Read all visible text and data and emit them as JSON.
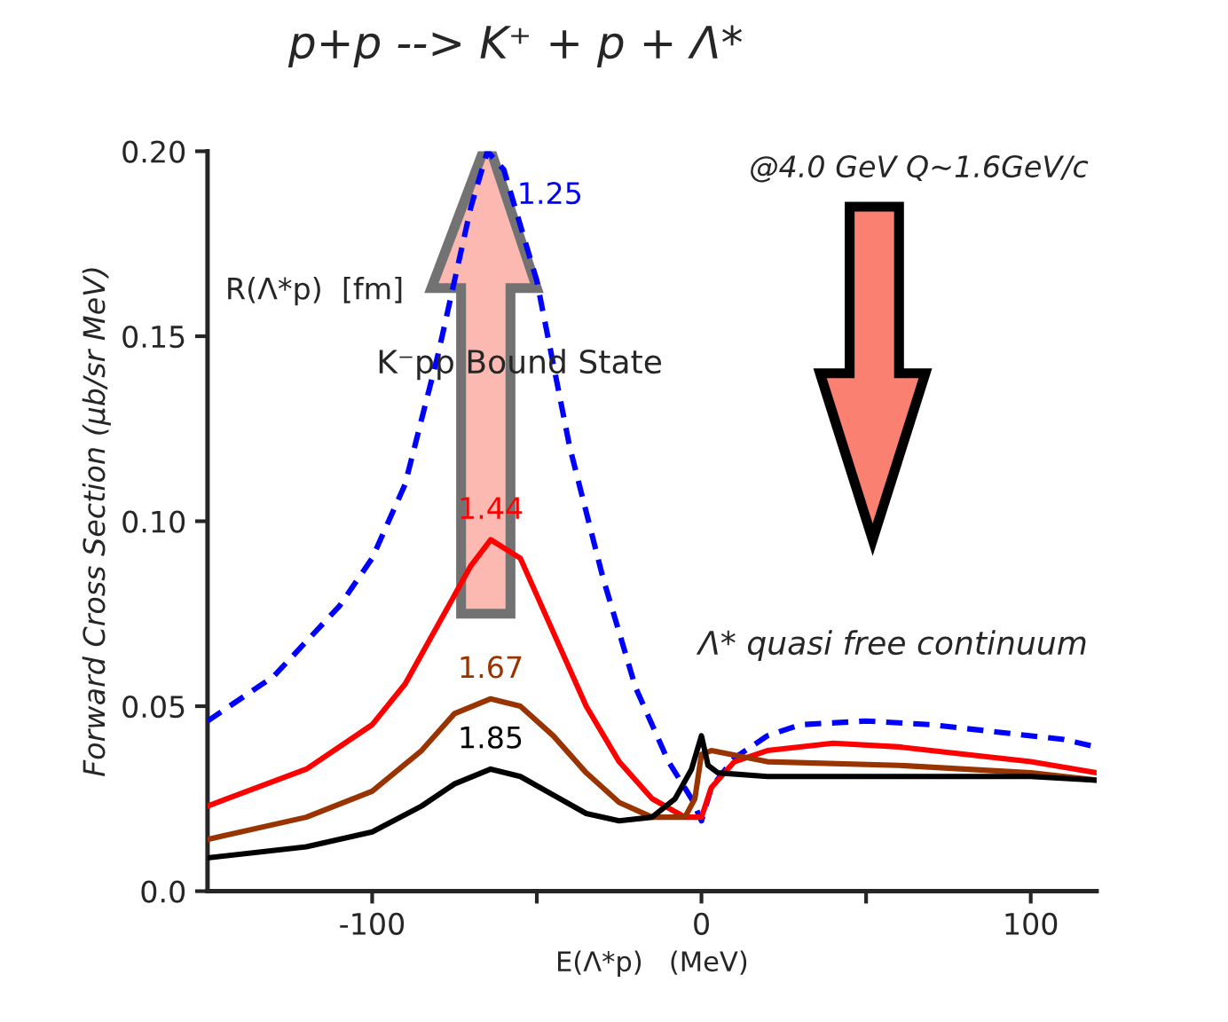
{
  "chart_data": {
    "type": "line",
    "title": "p+p --> K⁺ + p + Λ*",
    "xlabel": "E(Λ*p)   (MeV)",
    "ylabel": "Forward Cross Section (μb/sr MeV)",
    "annotations": [
      "@4.0 GeV Q~1.6GeV/c",
      "R(Λ*p)  [fm]",
      "K⁻pp Bound State",
      "Λ* quasi free continuum"
    ],
    "xlim": [
      -150,
      120
    ],
    "ylim": [
      0,
      0.2
    ],
    "xticks": [
      -100,
      {
        "value": -50,
        "label": null
      },
      0,
      {
        "value": 50,
        "label": null
      },
      100
    ],
    "yticks": [
      {
        "value": 0,
        "label": "0.0"
      },
      0.05,
      {
        "value": 0.1,
        "label": "0.10"
      },
      0.15,
      {
        "value": 0.2,
        "label": "0.20"
      }
    ],
    "grid": false,
    "legend": false,
    "series": [
      {
        "name": "1.25",
        "color": "#0000ff",
        "line_style": "dashed",
        "x": [
          -150,
          -130,
          -110,
          -100,
          -90,
          -80,
          -75,
          -70,
          -65,
          -60,
          -55,
          -50,
          -40,
          -30,
          -20,
          -10,
          -3,
          0,
          3,
          10,
          20,
          30,
          50,
          70,
          90,
          110,
          120
        ],
        "values": [
          0.046,
          0.058,
          0.077,
          0.09,
          0.11,
          0.145,
          0.165,
          0.185,
          0.2,
          0.195,
          0.18,
          0.165,
          0.12,
          0.085,
          0.055,
          0.035,
          0.025,
          0.019,
          0.028,
          0.036,
          0.042,
          0.045,
          0.046,
          0.045,
          0.043,
          0.041,
          0.039
        ]
      },
      {
        "name": "1.44",
        "color": "#ff0000",
        "line_style": "solid",
        "x": [
          -150,
          -120,
          -100,
          -90,
          -80,
          -70,
          -64,
          -55,
          -45,
          -35,
          -25,
          -15,
          -5,
          0,
          3,
          10,
          20,
          40,
          60,
          80,
          100,
          120
        ],
        "values": [
          0.023,
          0.033,
          0.045,
          0.056,
          0.072,
          0.088,
          0.095,
          0.09,
          0.07,
          0.05,
          0.035,
          0.025,
          0.02,
          0.02,
          0.028,
          0.035,
          0.038,
          0.04,
          0.039,
          0.037,
          0.035,
          0.032
        ]
      },
      {
        "name": "1.67",
        "color": "#993300",
        "line_style": "solid",
        "x": [
          -150,
          -120,
          -100,
          -85,
          -75,
          -64,
          -55,
          -45,
          -35,
          -25,
          -15,
          -5,
          -2,
          0,
          3,
          20,
          60,
          100,
          120
        ],
        "values": [
          0.014,
          0.02,
          0.027,
          0.038,
          0.048,
          0.052,
          0.05,
          0.042,
          0.032,
          0.024,
          0.02,
          0.02,
          0.025,
          0.037,
          0.038,
          0.035,
          0.034,
          0.032,
          0.03
        ]
      },
      {
        "name": "1.85",
        "color": "#000000",
        "line_style": "solid",
        "x": [
          -150,
          -120,
          -100,
          -85,
          -75,
          -64,
          -55,
          -45,
          -35,
          -25,
          -15,
          -8,
          -3,
          0,
          2,
          5,
          20,
          60,
          100,
          120
        ],
        "values": [
          0.009,
          0.012,
          0.016,
          0.023,
          0.029,
          0.033,
          0.031,
          0.026,
          0.021,
          0.019,
          0.02,
          0.025,
          0.033,
          0.042,
          0.034,
          0.032,
          0.031,
          0.031,
          0.031,
          0.03
        ]
      }
    ]
  }
}
